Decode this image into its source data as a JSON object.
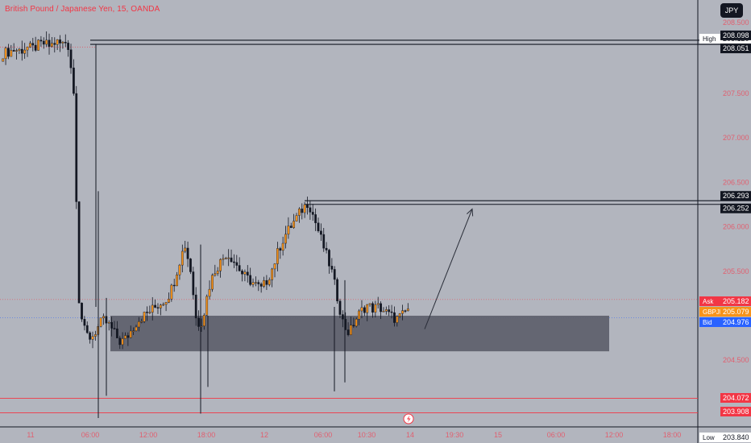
{
  "header": {
    "title": "British Pound / Japanese Yen, 15, OANDA",
    "currency": "JPY"
  },
  "colors": {
    "background": "#b2b5be",
    "up": "#f7931a",
    "down": "#131722",
    "zone": "#5d606b",
    "resistance": "#131722",
    "support": "#f23645",
    "ask": "#f23645",
    "symbol": "#f7931a",
    "bid": "#2962ff"
  },
  "price_scale": {
    "top_label": "208.500",
    "high": {
      "label": "High",
      "value": "208.120"
    },
    "level1": "208.098",
    "level2": "208.051",
    "level3": "206.293",
    "level4": "206.252",
    "ask": {
      "label": "Ask",
      "value": "205.182"
    },
    "symbol": {
      "label": "GBPJPY",
      "value": "205.079"
    },
    "bid": {
      "label": "Bid",
      "value": "204.976"
    },
    "support1": "204.072",
    "support2": "203.908",
    "low": {
      "label": "Low",
      "value": "203.840"
    },
    "ticks": [
      "207.500",
      "207.000",
      "206.500",
      "206.000",
      "205.500",
      "204.500"
    ]
  },
  "time_axis": {
    "labels": [
      "11",
      "06:00",
      "12:00",
      "18:00",
      "12",
      "06:00",
      "10:30",
      "14",
      "19:30",
      "15",
      "06:00",
      "12:00",
      "18:00"
    ],
    "alert_icon": "lightning-icon"
  },
  "chart_data": {
    "type": "candlestick",
    "title": "British Pound / Japanese Yen, 15, OANDA",
    "symbol": "GBPJPY",
    "ylim": [
      203.7,
      208.6
    ],
    "x_ticks": [
      "11",
      "06:00",
      "12:00",
      "18:00",
      "12",
      "06:00",
      "10:30",
      "14",
      "19:30",
      "15",
      "06:00",
      "12:00",
      "18:00"
    ],
    "y_ticks": [
      208.5,
      207.5,
      207.0,
      206.5,
      206.0,
      205.5,
      204.5
    ],
    "high": 208.12,
    "low": 203.84,
    "ask": 205.182,
    "last": 205.079,
    "bid": 204.976,
    "resistance_levels": [
      208.098,
      208.051,
      206.293,
      206.252
    ],
    "support_levels": [
      204.072,
      203.908
    ],
    "demand_zone": [
      204.6,
      205.0
    ],
    "projection": {
      "from": 204.85,
      "to": 206.2
    },
    "price_path": [
      207.95,
      207.97,
      207.99,
      207.98,
      208.02,
      208.0,
      208.04,
      208.06,
      208.03,
      208.08,
      208.05,
      208.09,
      207.6,
      205.1,
      204.8,
      204.75,
      204.85,
      204.95,
      204.9,
      204.8,
      204.7,
      204.75,
      204.85,
      204.95,
      205.0,
      205.05,
      205.1,
      205.15,
      205.2,
      205.35,
      205.6,
      205.8,
      205.5,
      204.9,
      204.95,
      205.3,
      205.5,
      205.6,
      205.7,
      205.65,
      205.55,
      205.45,
      205.4,
      205.35,
      205.3,
      205.4,
      205.55,
      205.75,
      205.9,
      206.0,
      206.1,
      206.2,
      206.28,
      206.1,
      205.9,
      205.7,
      205.5,
      205.2,
      204.9,
      204.8,
      204.95,
      205.05,
      205.12,
      205.08,
      205.1,
      205.05,
      205.0,
      204.96,
      205.0,
      205.08
    ]
  }
}
